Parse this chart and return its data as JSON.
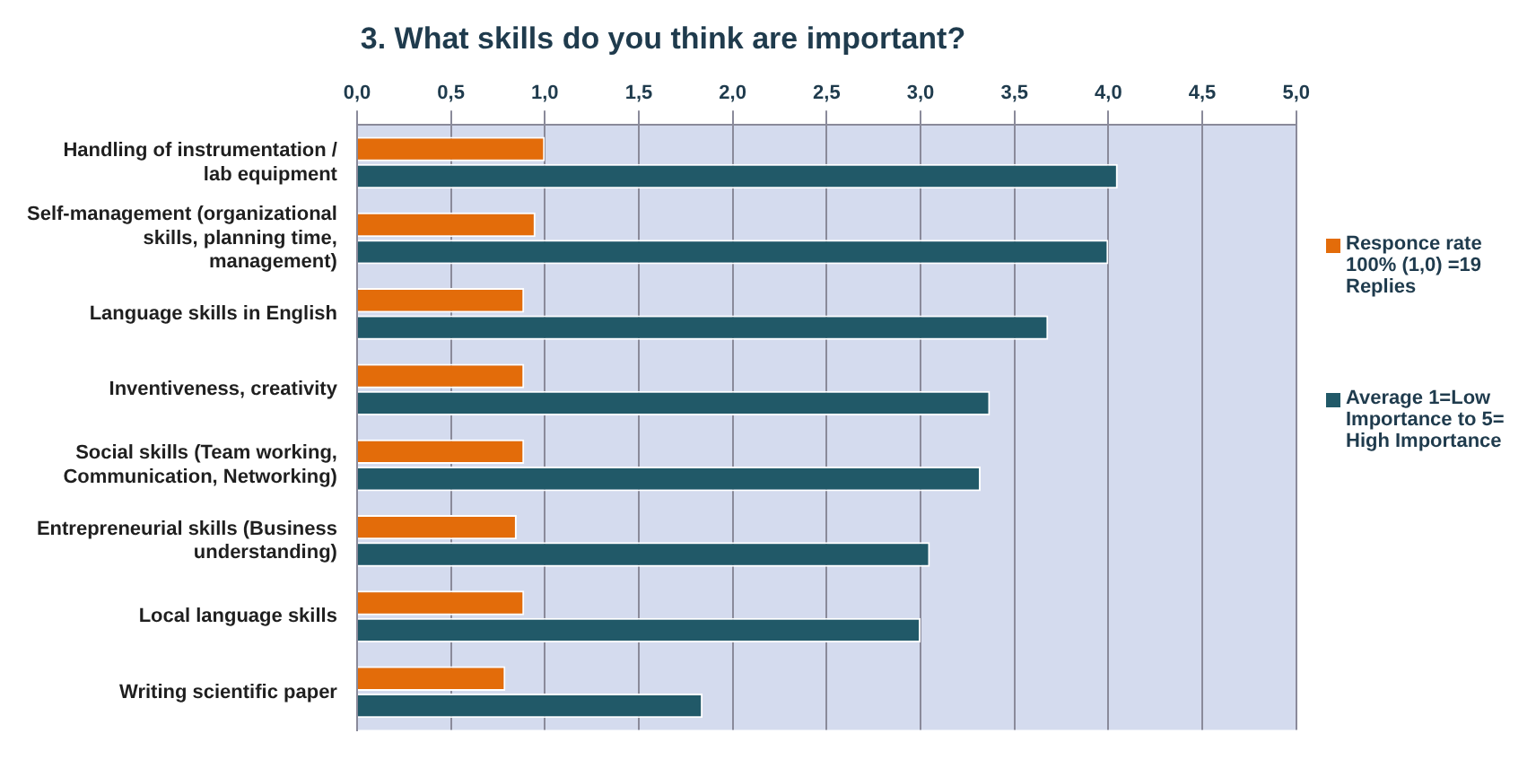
{
  "chart_data": {
    "type": "bar",
    "orientation": "horizontal",
    "title": "3. What skills do you think are important?",
    "categories": [
      "Handling of instrumentation / lab equipment",
      "Self-management (organizational skills, planning time, management)",
      "Language skills in English",
      "Inventiveness, creativity",
      "Social skills (Team working, Communication, Networking)",
      "Entrepreneurial skills (Business understanding)",
      "Local language skills",
      "Writing scientific paper"
    ],
    "series": [
      {
        "name": "Responce rate 100% (1,0) =19 Replies",
        "color": "#e36c0a",
        "values": [
          1.0,
          0.95,
          0.89,
          0.89,
          0.89,
          0.85,
          0.89,
          0.79
        ]
      },
      {
        "name": "Average 1=Low Importance to 5= High Importance",
        "color": "#215968",
        "values": [
          4.05,
          4.0,
          3.68,
          3.37,
          3.32,
          3.05,
          3.0,
          1.84
        ]
      }
    ],
    "xlim": [
      0,
      5
    ],
    "xticks": [
      {
        "value": 0,
        "label": "0,0"
      },
      {
        "value": 0.5,
        "label": "0,5"
      },
      {
        "value": 1,
        "label": "1,0"
      },
      {
        "value": 1.5,
        "label": "1,5"
      },
      {
        "value": 2,
        "label": "2,0"
      },
      {
        "value": 2.5,
        "label": "2,5"
      },
      {
        "value": 3,
        "label": "3,0"
      },
      {
        "value": 3.5,
        "label": "3,5"
      },
      {
        "value": 4,
        "label": "4,0"
      },
      {
        "value": 4.5,
        "label": "4,5"
      },
      {
        "value": 5,
        "label": "5,0"
      }
    ],
    "grid": "x",
    "legend": "right"
  }
}
